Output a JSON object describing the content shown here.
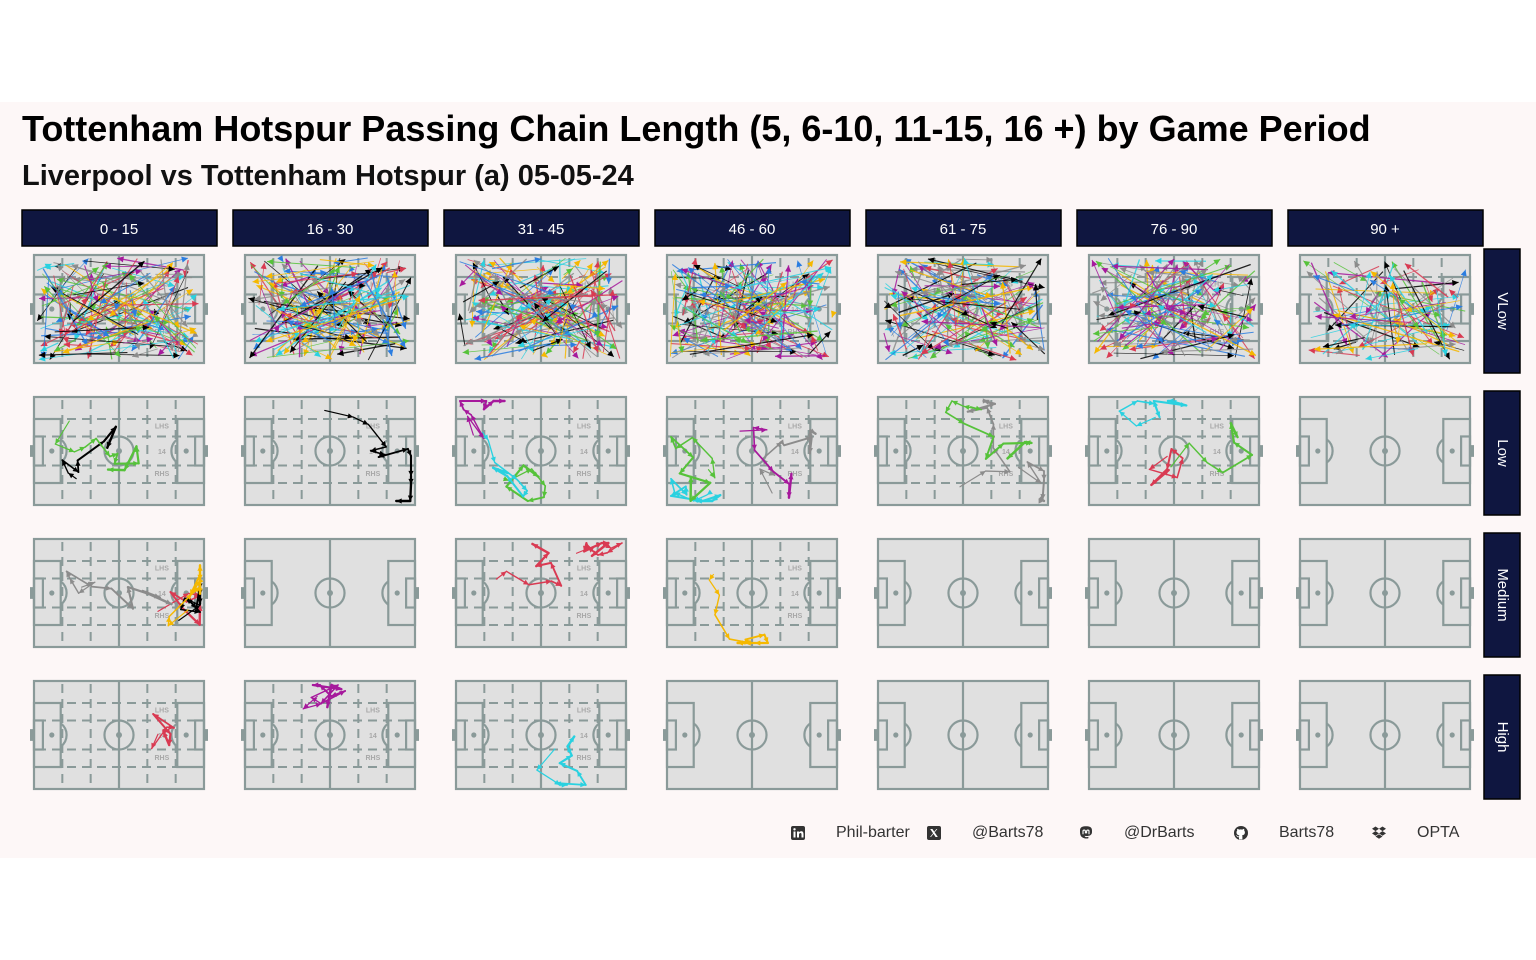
{
  "title": "Tottenham Hotspur Passing Chain Length (5, 6-10, 11-15, 16 +) by Game Period",
  "subtitle": "Liverpool vs Tottenham Hotspur (a) 05-05-24",
  "chart_data": {
    "type": "small-multiples-pitch",
    "columns": [
      "0 - 15",
      "16 - 30",
      "31 - 45",
      "46 - 60",
      "61 - 75",
      "76 - 90",
      "90 +"
    ],
    "rows": [
      "VLow",
      "Low",
      "Medium",
      "High"
    ],
    "pitch_labels": {
      "top": "LHS",
      "center": "14",
      "bottom": "RHS"
    },
    "pitch_color": "#e0e0e0",
    "line_color": "#8a9a99",
    "palette": [
      "#000000",
      "#56c23a",
      "#a6199c",
      "#2ad1e0",
      "#8c8c8c",
      "#d93a52",
      "#f5b800",
      "#2b7de0"
    ],
    "cells": [
      [
        {
          "chains": 140,
          "zones": true
        },
        {
          "chains": 140,
          "zones": true
        },
        {
          "chains": 140,
          "zones": true
        },
        {
          "chains": 140,
          "zones": true
        },
        {
          "chains": 130,
          "zones": true
        },
        {
          "chains": 130,
          "zones": true
        },
        {
          "chains": 75,
          "zones": true
        }
      ],
      [
        {
          "chains": [
            0,
            1
          ],
          "zones": true
        },
        {
          "chains": [
            0
          ],
          "zones": true
        },
        {
          "chains": [
            2,
            1,
            3
          ],
          "zones": true
        },
        {
          "chains": [
            3,
            4,
            1,
            2
          ],
          "zones": true
        },
        {
          "chains": [
            4,
            1,
            4
          ],
          "zones": true
        },
        {
          "chains": [
            5,
            3,
            1
          ],
          "zones": true
        },
        {
          "chains": [],
          "zones": false
        }
      ],
      [
        {
          "chains": [
            5,
            0,
            6,
            4
          ],
          "zones": true
        },
        {
          "chains": [],
          "zones": false
        },
        {
          "chains": [
            5,
            5
          ],
          "zones": true
        },
        {
          "chains": [
            6
          ],
          "zones": true
        },
        {
          "chains": [],
          "zones": false
        },
        {
          "chains": [],
          "zones": false
        },
        {
          "chains": [],
          "zones": false
        }
      ],
      [
        {
          "chains": [
            5
          ],
          "zones": true
        },
        {
          "chains": [
            2
          ],
          "zones": true
        },
        {
          "chains": [
            3
          ],
          "zones": true
        },
        {
          "chains": [],
          "zones": false
        },
        {
          "chains": [],
          "zones": false
        },
        {
          "chains": [],
          "zones": false
        },
        {
          "chains": [],
          "zones": false
        }
      ]
    ]
  },
  "footer": {
    "linkedin": "Phil-barter",
    "x": "@Barts78",
    "mastodon": "@DrBarts",
    "github": "Barts78",
    "source": "OPTA"
  },
  "strip_color": "#0f1640"
}
